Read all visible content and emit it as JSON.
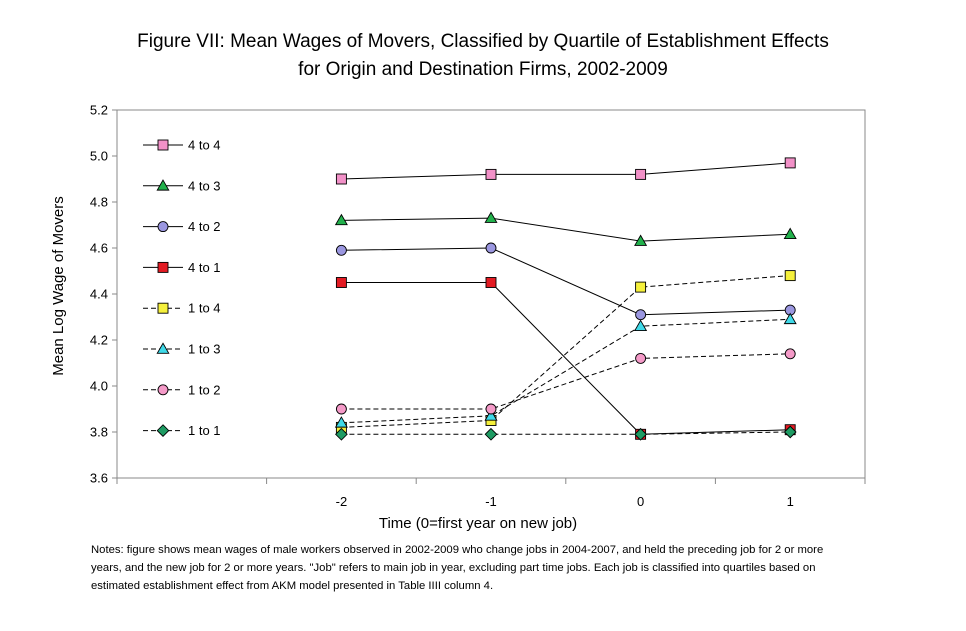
{
  "title": {
    "line1": "Figure VII: Mean Wages of Movers, Classified by Quartile of Establishment Effects",
    "line2": "for Origin and Destination Firms, 2002-2009"
  },
  "notes": {
    "line1": "Notes: figure shows mean wages of male workers observed in 2002-2009 who change jobs in 2004-2007, and held the preceding job for 2 or more",
    "line2": "years, and the new job for 2 or more years.  \"Job\" refers to main job in year, excluding part time jobs.  Each job is classified into quartiles based on",
    "line3": "estimated establishment effect from AKM model presented in Table IIII column 4."
  },
  "chart_data": {
    "type": "line",
    "x": [
      -2,
      -1,
      0,
      1
    ],
    "xticks": [
      "-2",
      "-1",
      "0",
      "1"
    ],
    "xlabel": "Time (0=first year on new job)",
    "ylabel": "Mean Log Wage of Movers",
    "ylim": [
      3.6,
      5.2
    ],
    "yticks": [
      "3.6",
      "3.8",
      "4.0",
      "4.2",
      "4.4",
      "4.6",
      "4.8",
      "5.0",
      "5.2"
    ],
    "grid": false,
    "legend_position": "top-left",
    "series": [
      {
        "name": "4 to 4",
        "values": [
          4.9,
          4.92,
          4.92,
          4.97
        ],
        "marker": "square",
        "color": "#f291c8",
        "dashed": false
      },
      {
        "name": "4 to 3",
        "values": [
          4.72,
          4.73,
          4.63,
          4.66
        ],
        "marker": "triangle",
        "color": "#22b14c",
        "dashed": false
      },
      {
        "name": "4 to 2",
        "values": [
          4.59,
          4.6,
          4.31,
          4.33
        ],
        "marker": "circle",
        "color": "#9b97e0",
        "dashed": false
      },
      {
        "name": "4 to 1",
        "values": [
          4.45,
          4.45,
          3.79,
          3.81
        ],
        "marker": "square",
        "color": "#e31b23",
        "dashed": false
      },
      {
        "name": "1 to 4",
        "values": [
          3.82,
          3.85,
          4.43,
          4.48
        ],
        "marker": "square",
        "color": "#f5f03c",
        "dashed": true
      },
      {
        "name": "1 to 3",
        "values": [
          3.84,
          3.87,
          4.26,
          4.29
        ],
        "marker": "triangle",
        "color": "#3fd9e8",
        "dashed": true
      },
      {
        "name": "1 to 2",
        "values": [
          3.9,
          3.9,
          4.12,
          4.14
        ],
        "marker": "circle",
        "color": "#f49ac8",
        "dashed": true
      },
      {
        "name": "1 to 1",
        "values": [
          3.79,
          3.79,
          3.79,
          3.8
        ],
        "marker": "diamond",
        "color": "#1e9b63",
        "dashed": true
      }
    ]
  }
}
